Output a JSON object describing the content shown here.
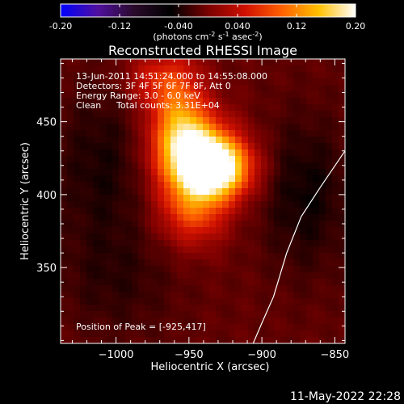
{
  "colorbar": {
    "colors": [
      "#0000ff",
      "#5010a0",
      "#2a0a2a",
      "#000000",
      "#7a0000",
      "#d01000",
      "#ff6000",
      "#ffc000",
      "#ffffff"
    ],
    "ticks": [
      "-0.20",
      "-0.12",
      "-0.040",
      "0.040",
      "0.12",
      "0.20"
    ],
    "units_prefix": "(photons cm",
    "units_exp1": "-2",
    "units_s": " s",
    "units_exp2": "-1",
    "units_asec": " asec",
    "units_exp3": "-2",
    "units_suffix": ")"
  },
  "plot": {
    "title": "Reconstructed RHESSI Image",
    "xlabel": "Heliocentric X (arcsec)",
    "ylabel": "Heliocentric Y (arcsec)",
    "info_lines": [
      "13-Jun-2011 14:51:24.000 to 14:55:08.000",
      "Detectors: 3F 4F 5F 6F 7F 8F, Att 0",
      "Energy Range: 3.0 - 6.0 keV"
    ],
    "clean_label": "Clean",
    "total_counts": "Total counts: 3.31E+04",
    "peak_label": "Position of Peak = [-925,417]"
  },
  "chart_data": {
    "type": "heatmap",
    "title": "Reconstructed RHESSI Image",
    "xlabel": "Heliocentric X (arcsec)",
    "ylabel": "Heliocentric Y (arcsec)",
    "xlim": [
      -1038,
      -843
    ],
    "ylim": [
      298,
      493
    ],
    "x_ticks": [
      -1000,
      -950,
      -900,
      -850
    ],
    "y_ticks": [
      350,
      400,
      450
    ],
    "color_range": [
      -0.2,
      0.2
    ],
    "peak": [
      -925,
      417
    ],
    "sources": [
      {
        "x": -930,
        "y": 418,
        "sx": 16,
        "sy": 14,
        "amp": 0.2
      },
      {
        "x": -947,
        "y": 430,
        "sx": 18,
        "sy": 18,
        "amp": 0.15
      },
      {
        "x": -957,
        "y": 455,
        "sx": 13,
        "sy": 26,
        "amp": 0.1
      },
      {
        "x": -947,
        "y": 392,
        "sx": 16,
        "sy": 18,
        "amp": 0.1
      },
      {
        "x": -975,
        "y": 478,
        "sx": 14,
        "sy": 13,
        "amp": 0.05
      },
      {
        "x": -1010,
        "y": 420,
        "sx": 24,
        "sy": 40,
        "amp": -0.03
      },
      {
        "x": -870,
        "y": 400,
        "sx": 22,
        "sy": 38,
        "amp": -0.035
      },
      {
        "x": -1000,
        "y": 340,
        "sx": 30,
        "sy": 28,
        "amp": -0.02
      }
    ],
    "limb": [
      [
        -843,
        430
      ],
      [
        -860,
        405
      ],
      [
        -873,
        385
      ],
      [
        -883,
        360
      ],
      [
        -892,
        330
      ],
      [
        -900,
        312
      ],
      [
        -906,
        298
      ]
    ]
  },
  "footer": {
    "date": "11-May-2022 22:28"
  }
}
